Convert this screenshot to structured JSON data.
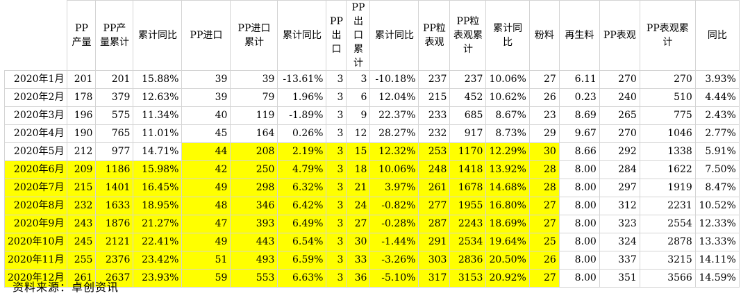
{
  "headers": [
    "",
    "PP产量",
    "PP产量累计",
    "累计同比",
    "PP进口",
    "PP进口累计",
    "累计同比",
    "PP出口",
    "PP出口累计",
    "累计同比",
    "PP粒表观",
    "PP粒表观累计",
    "累计同比",
    "粉料",
    "再生料",
    "PP表观",
    "PP表观累计",
    "同比"
  ],
  "rows": [
    [
      "2020年1月",
      "201",
      "201",
      "15.88%",
      "39",
      "39",
      "-13.61%",
      "3",
      "3",
      "-10.18%",
      "237",
      "237",
      "10.06%",
      "27",
      "6.11",
      "270",
      "270",
      "3.93%"
    ],
    [
      "2020年2月",
      "178",
      "379",
      "12.63%",
      "39",
      "79",
      "1.96%",
      "3",
      "6",
      "12.04%",
      "215",
      "452",
      "10.62%",
      "26",
      "0.23",
      "240",
      "510",
      "4.44%"
    ],
    [
      "2020年3月",
      "196",
      "575",
      "11.34%",
      "40",
      "119",
      "-1.89%",
      "3",
      "9",
      "22.37%",
      "233",
      "685",
      "8.67%",
      "23",
      "8.69",
      "265",
      "775",
      "2.43%"
    ],
    [
      "2020年4月",
      "190",
      "765",
      "11.01%",
      "45",
      "164",
      "0.26%",
      "3",
      "12",
      "28.27%",
      "232",
      "917",
      "8.73%",
      "29",
      "9.67",
      "270",
      "1046",
      "2.77%"
    ],
    [
      "2020年5月",
      "212",
      "977",
      "14.71%",
      "44",
      "208",
      "2.19%",
      "3",
      "15",
      "12.32%",
      "253",
      "1170",
      "12.29%",
      "30",
      "8.66",
      "292",
      "1338",
      "5.91%"
    ],
    [
      "2020年6月",
      "209",
      "1186",
      "15.98%",
      "42",
      "250",
      "4.79%",
      "3",
      "18",
      "10.06%",
      "248",
      "1418",
      "13.92%",
      "28",
      "8.00",
      "284",
      "1622",
      "7.50%"
    ],
    [
      "2020年7月",
      "215",
      "1401",
      "16.45%",
      "49",
      "298",
      "6.32%",
      "3",
      "21",
      "3.97%",
      "261",
      "1678",
      "14.68%",
      "28",
      "8.00",
      "297",
      "1919",
      "8.47%"
    ],
    [
      "2020年8月",
      "232",
      "1633",
      "18.95%",
      "48",
      "346",
      "6.42%",
      "3",
      "24",
      "-0.82%",
      "277",
      "1955",
      "16.80%",
      "27",
      "8.00",
      "312",
      "2231",
      "10.52%"
    ],
    [
      "2020年9月",
      "243",
      "1876",
      "21.27%",
      "47",
      "393",
      "6.49%",
      "3",
      "27",
      "-0.28%",
      "287",
      "2243",
      "18.69%",
      "27",
      "8.00",
      "323",
      "2554",
      "12.33%"
    ],
    [
      "2020年10月",
      "245",
      "2121",
      "22.41%",
      "49",
      "443",
      "6.54%",
      "3",
      "30",
      "-1.44%",
      "291",
      "2534",
      "19.64%",
      "25",
      "8.00",
      "324",
      "2878",
      "13.33%"
    ],
    [
      "2020年11月",
      "255",
      "2376",
      "23.42%",
      "51",
      "493",
      "6.59%",
      "3",
      "33",
      "-3.26%",
      "303",
      "2836",
      "20.50%",
      "26",
      "8.00",
      "337",
      "3215",
      "14.11%"
    ],
    [
      "2020年12月",
      "261",
      "2637",
      "23.93%",
      "59",
      "553",
      "6.63%",
      "3",
      "36",
      "-5.10%",
      "317",
      "3153",
      "20.92%",
      "27",
      "8.00",
      "351",
      "3566",
      "14.59%"
    ]
  ],
  "highlight_color": "#ffff00",
  "source_note": "资料来源：卓创资讯"
}
